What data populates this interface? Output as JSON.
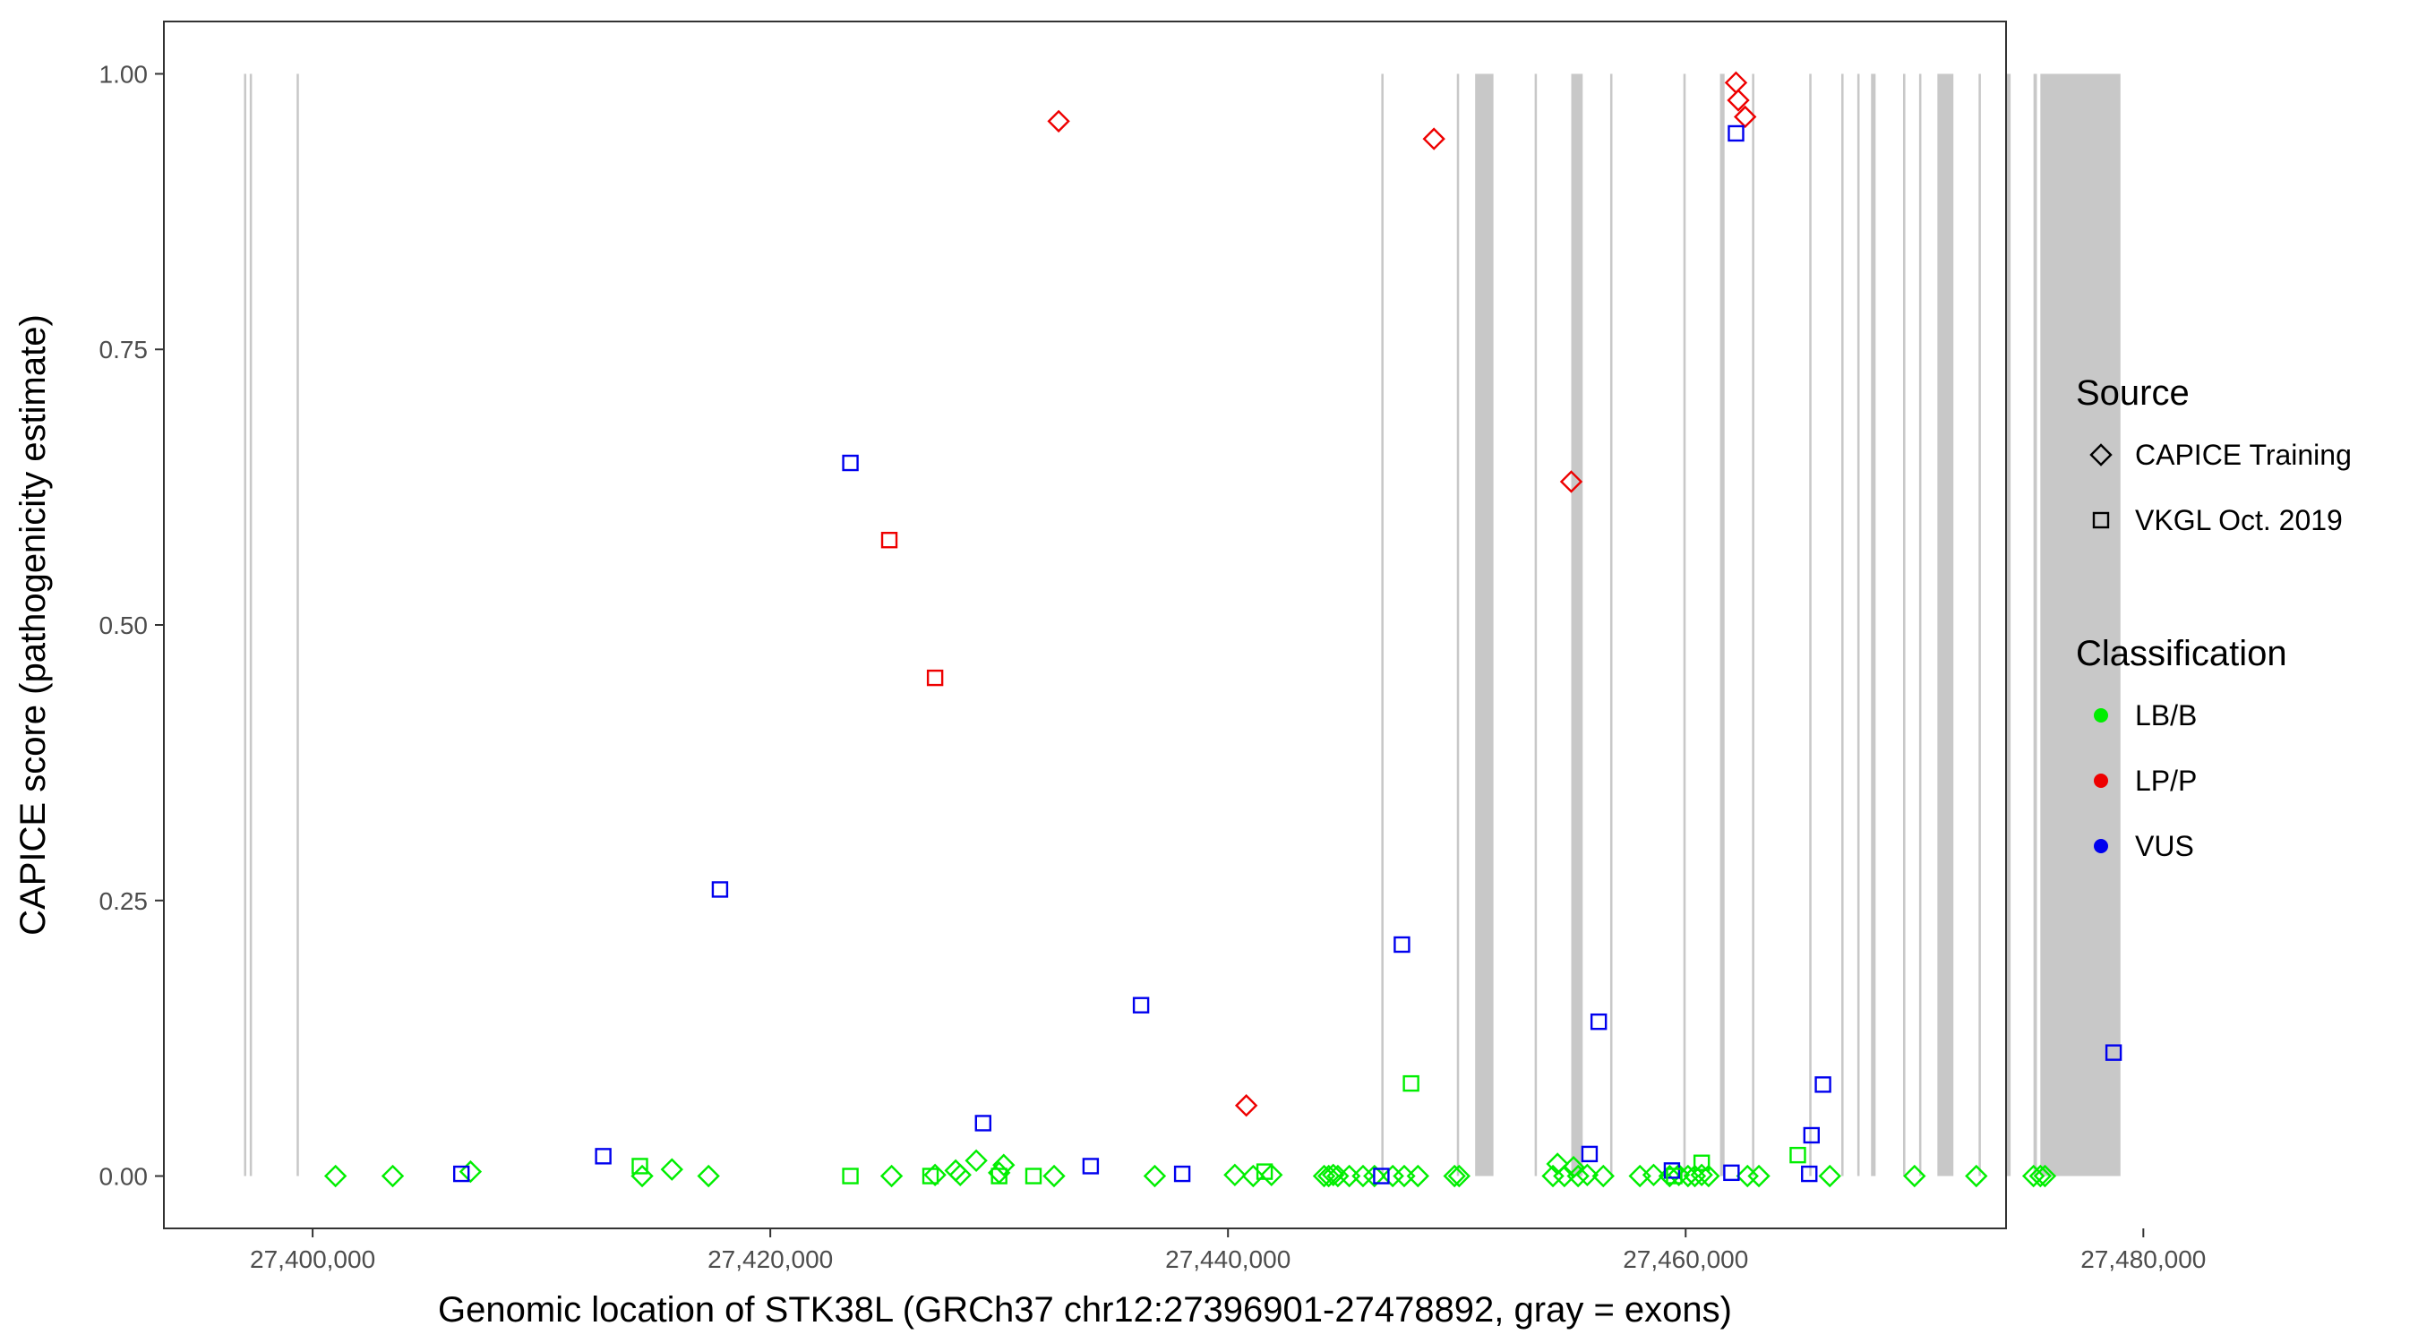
{
  "chart_data": {
    "type": "scatter",
    "title": "",
    "xlabel": "Genomic location of STK38L (GRCh37 chr12:27396901-27478892, gray = exons)",
    "ylabel": "CAPICE score (pathogenicity estimate)",
    "xlim": [
      27393500,
      27474000
    ],
    "ylim": [
      -0.0475,
      1.0475
    ],
    "x_ticks": [
      27400000,
      27420000,
      27440000,
      27460000,
      27480000
    ],
    "x_tick_labels": [
      "27,400,000",
      "27,420,000",
      "27,440,000",
      "27,460,000",
      "27,480,000"
    ],
    "y_ticks": [
      0,
      0.25,
      0.5,
      0.75,
      1.0
    ],
    "y_tick_labels": [
      "0.00",
      "0.25",
      "0.50",
      "0.75",
      "1.00"
    ],
    "grid": false,
    "exon_color": "#c8c8c8",
    "exons": [
      [
        27397000,
        27397100
      ],
      [
        27397250,
        27397350
      ],
      [
        27399300,
        27399400
      ],
      [
        27446700,
        27446800
      ],
      [
        27450000,
        27450100
      ],
      [
        27450800,
        27451600
      ],
      [
        27453400,
        27453500
      ],
      [
        27455000,
        27455500
      ],
      [
        27456700,
        27456800
      ],
      [
        27459900,
        27460000
      ],
      [
        27461500,
        27461700
      ],
      [
        27462900,
        27463000
      ],
      [
        27465400,
        27465500
      ],
      [
        27466800,
        27466900
      ],
      [
        27467500,
        27467600
      ],
      [
        27468100,
        27468300
      ],
      [
        27469500,
        27469600
      ],
      [
        27470200,
        27470300
      ],
      [
        27471000,
        27471700
      ],
      [
        27472800,
        27472900
      ],
      [
        27474000,
        27474200
      ],
      [
        27475200,
        27475350
      ],
      [
        27475500,
        27479000
      ]
    ],
    "legend": {
      "position": "right",
      "shape_title": "Source",
      "shape_items": [
        {
          "label": "CAPICE Training",
          "shape": "diamond"
        },
        {
          "label": "VKGL Oct. 2019",
          "shape": "square"
        }
      ],
      "color_title": "Classification",
      "color_items": [
        {
          "label": "LB/B",
          "color": "#00ee00"
        },
        {
          "label": "LP/P",
          "color": "#ee0000"
        },
        {
          "label": "VUS",
          "color": "#0000ee"
        }
      ]
    },
    "colors": {
      "LB/B": "#00ee00",
      "LP/P": "#ee0000",
      "VUS": "#0000ee"
    },
    "series": [
      {
        "source": "CAPICE Training",
        "classification": "LP/P",
        "points": [
          [
            27432600,
            0.957
          ],
          [
            27449000,
            0.941
          ],
          [
            27455000,
            0.63
          ],
          [
            27462200,
            0.992
          ],
          [
            27462300,
            0.976
          ],
          [
            27462600,
            0.961
          ],
          [
            27440800,
            0.064
          ]
        ]
      },
      {
        "source": "CAPICE Training",
        "classification": "LB/B",
        "points": [
          [
            27401000,
            0.0
          ],
          [
            27403500,
            0.0
          ],
          [
            27406900,
            0.004
          ],
          [
            27414400,
            0.0
          ],
          [
            27415700,
            0.006
          ],
          [
            27417300,
            0.0
          ],
          [
            27425300,
            0.0
          ],
          [
            27427200,
            0.001
          ],
          [
            27428100,
            0.005
          ],
          [
            27428300,
            0.001
          ],
          [
            27429000,
            0.014
          ],
          [
            27430000,
            0.003
          ],
          [
            27430200,
            0.01
          ],
          [
            27432400,
            0.0
          ],
          [
            27436800,
            0.0
          ],
          [
            27440300,
            0.001
          ],
          [
            27441100,
            0.0
          ],
          [
            27441900,
            0.001
          ],
          [
            27444200,
            0.0
          ],
          [
            27444400,
            0.0
          ],
          [
            27444600,
            0.001
          ],
          [
            27444800,
            0.0
          ],
          [
            27445300,
            0.0
          ],
          [
            27445900,
            0.0
          ],
          [
            27446400,
            0.0
          ],
          [
            27447200,
            0.0
          ],
          [
            27447700,
            0.0
          ],
          [
            27448300,
            0.0
          ],
          [
            27449900,
            0.0
          ],
          [
            27450100,
            0.0
          ],
          [
            27454200,
            0.0
          ],
          [
            27454400,
            0.011
          ],
          [
            27454700,
            0.0
          ],
          [
            27455100,
            0.008
          ],
          [
            27455300,
            0.0
          ],
          [
            27455700,
            0.001
          ],
          [
            27456400,
            0.0
          ],
          [
            27458000,
            0.0
          ],
          [
            27458600,
            0.001
          ],
          [
            27459300,
            0.0
          ],
          [
            27459700,
            0.001
          ],
          [
            27460100,
            0.0
          ],
          [
            27460400,
            0.0
          ],
          [
            27460700,
            0.001
          ],
          [
            27461000,
            0.0
          ],
          [
            27462700,
            0.0
          ],
          [
            27463200,
            0.0
          ],
          [
            27466300,
            0.0
          ],
          [
            27470000,
            0.0
          ],
          [
            27472700,
            0.0
          ],
          [
            27475200,
            0.0
          ],
          [
            27475500,
            0.0
          ],
          [
            27475700,
            0.0
          ]
        ]
      },
      {
        "source": "VKGL Oct. 2019",
        "classification": "VUS",
        "points": [
          [
            27406500,
            0.002
          ],
          [
            27412700,
            0.018
          ],
          [
            27417800,
            0.26
          ],
          [
            27423500,
            0.647
          ],
          [
            27429300,
            0.048
          ],
          [
            27434000,
            0.009
          ],
          [
            27436200,
            0.155
          ],
          [
            27438000,
            0.002
          ],
          [
            27446700,
            0.0
          ],
          [
            27447600,
            0.21
          ],
          [
            27455800,
            0.02
          ],
          [
            27456200,
            0.14
          ],
          [
            27459400,
            0.005
          ],
          [
            27462000,
            0.003
          ],
          [
            27462200,
            0.946
          ],
          [
            27465400,
            0.002
          ],
          [
            27465500,
            0.037
          ],
          [
            27466000,
            0.083
          ],
          [
            27478700,
            0.112
          ]
        ]
      },
      {
        "source": "VKGL Oct. 2019",
        "classification": "LP/P",
        "points": [
          [
            27425200,
            0.577
          ],
          [
            27427200,
            0.452
          ]
        ]
      },
      {
        "source": "VKGL Oct. 2019",
        "classification": "LB/B",
        "points": [
          [
            27414300,
            0.009
          ],
          [
            27423500,
            0.0
          ],
          [
            27427000,
            0.0
          ],
          [
            27430000,
            0.0
          ],
          [
            27431500,
            0.0
          ],
          [
            27441600,
            0.004
          ],
          [
            27448000,
            0.084
          ],
          [
            27459500,
            0.0
          ],
          [
            27460700,
            0.012
          ],
          [
            27464900,
            0.019
          ]
        ]
      }
    ]
  }
}
